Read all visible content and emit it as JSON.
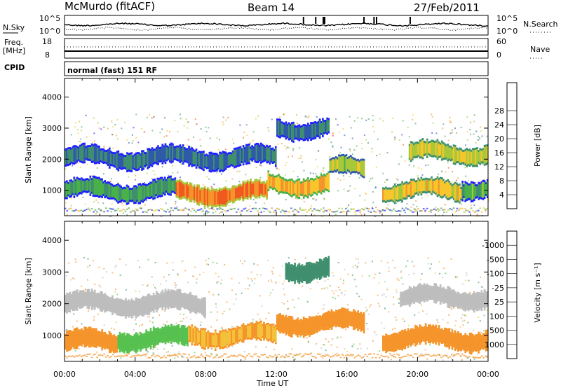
{
  "header": {
    "station": "McMurdo (fitACF)",
    "beam": "Beam 14",
    "date": "27/Feb/2011"
  },
  "top_panels": {
    "nsky_label": "N.Sky",
    "nsearch_label": "N.Search",
    "noise_ticks_left": [
      "10^5",
      "10^0"
    ],
    "noise_ticks_right": [
      "10^5",
      "10^0"
    ],
    "freq_label": "Freq.",
    "freq_unit": "[MHz]",
    "freq_ticks": [
      "18",
      "8"
    ],
    "nave_label": "Nave",
    "nave_ticks": [
      "60",
      "0"
    ],
    "cpid_label": "CPID",
    "cpid_value": "normal (fast) 151 RF"
  },
  "chart_data": [
    {
      "type": "heatmap",
      "panel": "power",
      "ylabel": "Slant Range [km]",
      "xlabel": "",
      "xlim": [
        0,
        24
      ],
      "ylim": [
        180,
        4600
      ],
      "yticks": [
        "1000",
        "2000",
        "3000",
        "4000"
      ],
      "colorbar": {
        "label": "Power [dB]",
        "ticks": [
          "4",
          "8",
          "12",
          "16",
          "20",
          "24",
          "28"
        ],
        "colors": [
          "#1f1fff",
          "#2e5aa8",
          "#3f8f6e",
          "#49b04a",
          "#a8c83a",
          "#f6c62c",
          "#f4942a",
          "#f05a1e",
          "#e41a1a"
        ]
      },
      "regions": [
        {
          "t0": 0.0,
          "t1": 6.3,
          "r": 1000,
          "value": 12
        },
        {
          "t0": 6.3,
          "t1": 11.5,
          "r": 900,
          "value": 28
        },
        {
          "t0": 11.5,
          "t1": 15.0,
          "r": 1200,
          "value": 24
        },
        {
          "t0": 15.0,
          "t1": 17.0,
          "r": 1700,
          "value": 18
        },
        {
          "t0": 18.0,
          "t1": 22.5,
          "r": 1000,
          "value": 22
        },
        {
          "t0": 22.5,
          "t1": 24.0,
          "r": 1100,
          "value": 14
        },
        {
          "t0": 0.0,
          "t1": 12.0,
          "r": 2050,
          "value": 8
        },
        {
          "t0": 19.5,
          "t1": 24.0,
          "r": 2200,
          "value": 20
        },
        {
          "t0": 12.0,
          "t1": 15.0,
          "r": 3000,
          "value": 8
        }
      ]
    },
    {
      "type": "heatmap",
      "panel": "velocity",
      "ylabel": "Slant Range [km]",
      "xlabel": "Time UT",
      "xlim": [
        0,
        24
      ],
      "ylim": [
        180,
        4600
      ],
      "yticks": [
        "1000",
        "2000",
        "3000",
        "4000"
      ],
      "xticks": [
        "00:00",
        "04:00",
        "08:00",
        "12:00",
        "16:00",
        "20:00",
        "00:00"
      ],
      "colorbar": {
        "label": "Velocity [m s⁻¹]",
        "ticks": [
          "1000",
          "500",
          "100",
          "25",
          "-25",
          "-100",
          "-500",
          "-1000"
        ],
        "colors": [
          "#2626c8",
          "#2e5aa8",
          "#3f8f6e",
          "#57c150",
          "#bdbdbd",
          "#f4c23a",
          "#f4942a",
          "#f0641e",
          "#e41a1a"
        ]
      },
      "regions": [
        {
          "t0": 0.0,
          "t1": 3.0,
          "r": 800,
          "value": -200
        },
        {
          "t0": 3.0,
          "t1": 7.0,
          "r": 900,
          "value": 50
        },
        {
          "t0": 7.0,
          "t1": 12.0,
          "r": 1000,
          "value": -100
        },
        {
          "t0": 12.0,
          "t1": 17.0,
          "r": 1400,
          "value": -300
        },
        {
          "t0": 18.0,
          "t1": 24.0,
          "r": 900,
          "value": -200
        },
        {
          "t0": 0.0,
          "t1": 8.0,
          "r": 2000,
          "value": 0
        },
        {
          "t0": 19.0,
          "t1": 24.0,
          "r": 2200,
          "value": 0
        },
        {
          "t0": 12.5,
          "t1": 15.0,
          "r": 3100,
          "value": 300
        }
      ]
    }
  ]
}
